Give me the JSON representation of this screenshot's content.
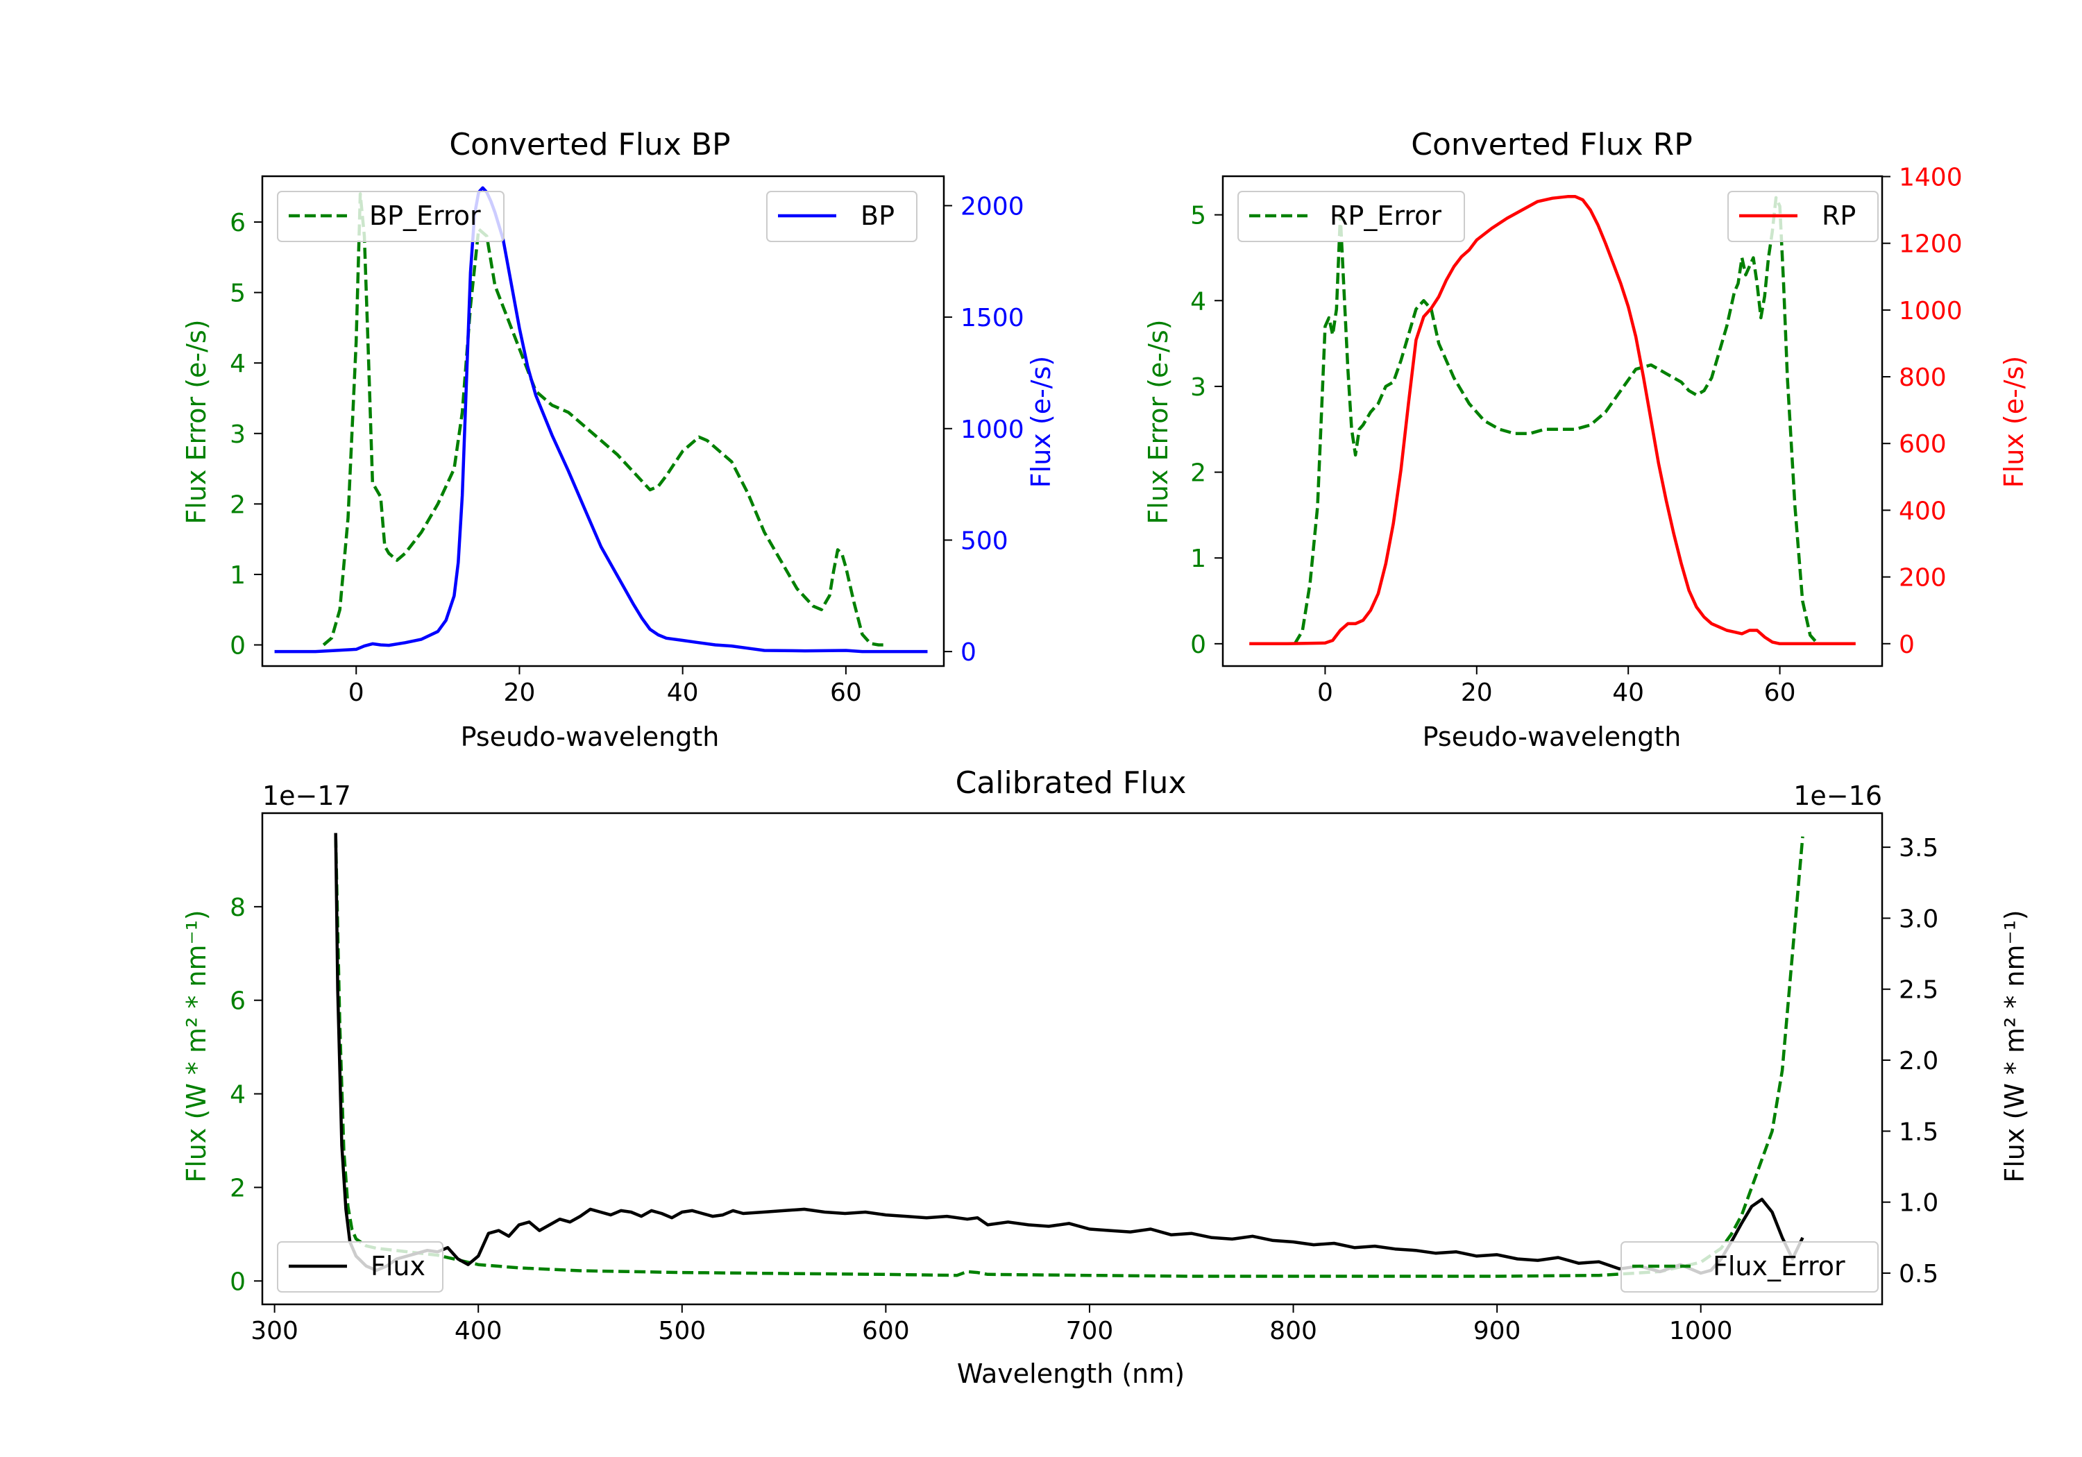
{
  "colors": {
    "green": "#008000",
    "blue": "#0000ff",
    "red": "#ff0000",
    "black": "#000000"
  },
  "chart_data": [
    {
      "id": "bp",
      "type": "line",
      "title": "Converted Flux BP",
      "xlabel": "Pseudo-wavelength",
      "ylabel_left": "Flux Error (e-/s)",
      "ylabel_right": "Flux (e-/s)",
      "xlim": [
        -11.5,
        72
      ],
      "ylim_left": [
        -0.3,
        6.65
      ],
      "ylim_right": [
        -65,
        2132
      ],
      "xticks": [
        0,
        20,
        40,
        60
      ],
      "yticks_left": [
        0,
        1,
        2,
        3,
        4,
        5,
        6
      ],
      "yticks_right": [
        0,
        500,
        1000,
        1500,
        2000
      ],
      "legend_left": "BP_Error",
      "legend_right": "BP",
      "series": [
        {
          "name": "BP_Error",
          "axis": "left",
          "style": "dashed",
          "color": "#008000",
          "x": [
            -4,
            -3,
            -2,
            -1,
            0,
            0.5,
            1,
            1.5,
            2,
            2.5,
            3,
            3.5,
            4,
            5,
            6,
            8,
            10,
            12,
            13,
            14,
            15,
            16,
            17,
            18,
            20,
            22,
            24,
            26,
            28,
            30,
            32,
            34,
            36,
            37,
            38,
            40,
            42,
            43,
            44,
            46,
            48,
            50,
            52,
            54,
            56,
            57,
            58,
            58.5,
            59,
            59.5,
            60,
            61,
            62,
            63,
            64,
            65
          ],
          "y": [
            0.0,
            0.1,
            0.5,
            1.8,
            4.3,
            6.4,
            5.8,
            4.1,
            2.3,
            2.2,
            2.1,
            1.4,
            1.3,
            1.2,
            1.3,
            1.6,
            2.0,
            2.5,
            3.3,
            4.8,
            5.9,
            5.8,
            5.1,
            4.8,
            4.2,
            3.6,
            3.4,
            3.3,
            3.1,
            2.9,
            2.7,
            2.45,
            2.2,
            2.25,
            2.4,
            2.75,
            2.95,
            2.9,
            2.8,
            2.6,
            2.15,
            1.6,
            1.2,
            0.8,
            0.55,
            0.5,
            0.7,
            1.05,
            1.35,
            1.3,
            1.1,
            0.6,
            0.15,
            0.02,
            0.0,
            0.0
          ]
        },
        {
          "name": "BP",
          "axis": "right",
          "style": "solid",
          "color": "#0000ff",
          "x": [
            -10,
            -5,
            0,
            1,
            2,
            3,
            4,
            6,
            8,
            10,
            11,
            12,
            12.5,
            13,
            13.5,
            14,
            14.5,
            15,
            15.5,
            16,
            16.5,
            17,
            18,
            19,
            20,
            21,
            22,
            24,
            26,
            28,
            30,
            32,
            34,
            35,
            36,
            37,
            38,
            40,
            42,
            44,
            46,
            48,
            50,
            55,
            60,
            62,
            64,
            66,
            70
          ],
          "y": [
            0,
            0,
            10,
            25,
            35,
            30,
            28,
            40,
            55,
            90,
            140,
            250,
            400,
            700,
            1200,
            1700,
            1960,
            2060,
            2080,
            2060,
            2020,
            1970,
            1850,
            1650,
            1450,
            1280,
            1150,
            970,
            810,
            640,
            470,
            340,
            210,
            150,
            100,
            75,
            60,
            50,
            40,
            30,
            25,
            15,
            5,
            3,
            5,
            0,
            0,
            0,
            0
          ]
        }
      ]
    },
    {
      "id": "rp",
      "type": "line",
      "title": "Converted Flux RP",
      "xlabel": "Pseudo-wavelength",
      "ylabel_left": "Flux Error (e-/s)",
      "ylabel_right": "Flux (e-/s)",
      "xlim": [
        -13.5,
        73.5
      ],
      "ylim_left": [
        -0.26,
        5.45
      ],
      "ylim_right": [
        -67,
        1401
      ],
      "xticks": [
        0,
        20,
        40,
        60
      ],
      "yticks_left": [
        0,
        1,
        2,
        3,
        4,
        5
      ],
      "yticks_right": [
        0,
        200,
        400,
        600,
        800,
        1000,
        1200,
        1400
      ],
      "legend_left": "RP_Error",
      "legend_right": "RP",
      "series": [
        {
          "name": "RP_Error",
          "axis": "left",
          "style": "dashed",
          "color": "#008000",
          "x": [
            -4,
            -3,
            -2,
            -1,
            0,
            0.5,
            1,
            1.5,
            2,
            2.5,
            3,
            3.5,
            4,
            4.5,
            5,
            6,
            7,
            8,
            9,
            10,
            11,
            12,
            13,
            14,
            15,
            17,
            19,
            21,
            23,
            25,
            27,
            29,
            31,
            33,
            35,
            37,
            39,
            41,
            43,
            45,
            47,
            48,
            49,
            50,
            51,
            52,
            53,
            54,
            54.5,
            55,
            55.5,
            56,
            56.5,
            57,
            57.5,
            58,
            58.5,
            59,
            59.5,
            60,
            60.5,
            61,
            62,
            63,
            64,
            65
          ],
          "y": [
            0.0,
            0.15,
            0.7,
            1.6,
            3.7,
            3.8,
            3.6,
            3.9,
            5.0,
            4.1,
            3.2,
            2.5,
            2.2,
            2.5,
            2.55,
            2.7,
            2.8,
            3.0,
            3.05,
            3.3,
            3.6,
            3.9,
            4.0,
            3.9,
            3.5,
            3.1,
            2.8,
            2.6,
            2.5,
            2.45,
            2.45,
            2.5,
            2.5,
            2.5,
            2.55,
            2.7,
            2.95,
            3.2,
            3.25,
            3.15,
            3.05,
            2.95,
            2.9,
            2.95,
            3.1,
            3.4,
            3.7,
            4.1,
            4.2,
            4.5,
            4.3,
            4.4,
            4.5,
            4.2,
            3.8,
            4.05,
            4.5,
            4.8,
            5.2,
            5.1,
            4.2,
            3.1,
            1.6,
            0.5,
            0.1,
            0.0
          ]
        },
        {
          "name": "RP",
          "axis": "right",
          "style": "solid",
          "color": "#ff0000",
          "x": [
            -10,
            -5,
            0,
            1,
            2,
            3,
            4,
            5,
            6,
            7,
            8,
            9,
            10,
            11,
            12,
            13,
            14,
            15,
            16,
            17,
            18,
            19,
            20,
            22,
            24,
            26,
            28,
            30,
            32,
            33,
            34,
            35,
            36,
            37,
            38,
            39,
            40,
            41,
            42,
            43,
            44,
            45,
            46,
            47,
            48,
            49,
            50,
            51,
            52,
            53,
            54,
            55,
            56,
            57,
            58,
            59,
            60,
            62,
            65,
            70
          ],
          "y": [
            0,
            0,
            2,
            10,
            40,
            60,
            60,
            70,
            100,
            150,
            240,
            360,
            520,
            720,
            910,
            980,
            1005,
            1040,
            1090,
            1130,
            1160,
            1180,
            1210,
            1245,
            1275,
            1300,
            1325,
            1335,
            1340,
            1340,
            1330,
            1300,
            1255,
            1200,
            1140,
            1080,
            1010,
            920,
            800,
            670,
            540,
            430,
            330,
            240,
            160,
            110,
            80,
            60,
            50,
            40,
            35,
            30,
            40,
            40,
            20,
            5,
            0,
            0,
            0,
            0
          ]
        }
      ]
    },
    {
      "id": "cal",
      "type": "line",
      "title": "Calibrated Flux",
      "xlabel": "Wavelength (nm)",
      "ylabel_left": "Flux (W * m² * nm⁻¹)",
      "ylabel_right": "Flux (W * m² * nm⁻¹)",
      "offset_left": "1e−17",
      "offset_right": "1e−16",
      "xlim": [
        294,
        1089
      ],
      "ylim_left": [
        -0.5,
        10.0
      ],
      "ylim_right": [
        0.28,
        3.74
      ],
      "xticks": [
        300,
        400,
        500,
        600,
        700,
        800,
        900,
        1000
      ],
      "yticks_left": [
        0,
        2,
        4,
        6,
        8
      ],
      "yticks_left_labels": [
        "0",
        "2",
        "4",
        "6",
        "8"
      ],
      "yticks_right": [
        0.5,
        1.0,
        1.5,
        2.0,
        2.5,
        3.0,
        3.5
      ],
      "yticks_right_labels": [
        "0.5",
        "1.0",
        "1.5",
        "2.0",
        "2.5",
        "3.0",
        "3.5"
      ],
      "legend_left": "Flux",
      "legend_right": "Flux_Error",
      "series": [
        {
          "name": "Flux_Error",
          "axis": "left",
          "style": "dashed",
          "color": "#008000",
          "x": [
            330,
            332,
            334,
            336,
            338,
            340,
            345,
            350,
            360,
            370,
            380,
            390,
            400,
            420,
            450,
            500,
            550,
            600,
            635,
            640,
            645,
            650,
            700,
            750,
            800,
            850,
            900,
            950,
            980,
            1000,
            1010,
            1015,
            1020,
            1025,
            1030,
            1035,
            1040,
            1045,
            1050
          ],
          "y": [
            9.5,
            5.5,
            2.8,
            1.6,
            1.1,
            0.9,
            0.75,
            0.7,
            0.65,
            0.6,
            0.55,
            0.45,
            0.35,
            0.28,
            0.22,
            0.18,
            0.16,
            0.14,
            0.12,
            0.2,
            0.18,
            0.14,
            0.12,
            0.1,
            0.1,
            0.1,
            0.1,
            0.12,
            0.2,
            0.4,
            0.7,
            1.0,
            1.4,
            2.0,
            2.6,
            3.2,
            4.5,
            7.0,
            9.5
          ]
        },
        {
          "name": "Flux",
          "axis": "right",
          "style": "solid",
          "color": "#000000",
          "x": [
            330,
            331,
            333,
            335,
            337,
            340,
            345,
            350,
            355,
            360,
            365,
            370,
            375,
            380,
            385,
            390,
            395,
            400,
            405,
            410,
            415,
            420,
            425,
            430,
            435,
            440,
            445,
            450,
            455,
            460,
            465,
            470,
            475,
            480,
            485,
            490,
            495,
            500,
            505,
            510,
            515,
            520,
            525,
            530,
            540,
            550,
            560,
            570,
            580,
            590,
            600,
            610,
            620,
            630,
            640,
            645,
            650,
            660,
            670,
            680,
            690,
            700,
            710,
            720,
            730,
            740,
            750,
            760,
            770,
            780,
            790,
            800,
            810,
            820,
            830,
            840,
            850,
            860,
            870,
            880,
            890,
            900,
            910,
            920,
            930,
            940,
            950,
            960,
            970,
            980,
            990,
            1000,
            1005,
            1010,
            1015,
            1020,
            1025,
            1030,
            1035,
            1040,
            1045,
            1050
          ],
          "y": [
            3.6,
            2.5,
            1.4,
            0.95,
            0.72,
            0.62,
            0.55,
            0.52,
            0.55,
            0.6,
            0.62,
            0.64,
            0.66,
            0.65,
            0.68,
            0.6,
            0.56,
            0.62,
            0.78,
            0.8,
            0.76,
            0.84,
            0.86,
            0.8,
            0.84,
            0.88,
            0.86,
            0.9,
            0.95,
            0.93,
            0.91,
            0.94,
            0.93,
            0.9,
            0.94,
            0.92,
            0.89,
            0.93,
            0.94,
            0.92,
            0.9,
            0.91,
            0.94,
            0.92,
            0.93,
            0.94,
            0.95,
            0.93,
            0.92,
            0.93,
            0.91,
            0.9,
            0.89,
            0.9,
            0.88,
            0.89,
            0.84,
            0.86,
            0.84,
            0.83,
            0.85,
            0.81,
            0.8,
            0.79,
            0.81,
            0.77,
            0.78,
            0.75,
            0.74,
            0.76,
            0.73,
            0.72,
            0.7,
            0.71,
            0.68,
            0.69,
            0.67,
            0.66,
            0.64,
            0.65,
            0.62,
            0.63,
            0.6,
            0.59,
            0.61,
            0.57,
            0.58,
            0.53,
            0.55,
            0.51,
            0.56,
            0.5,
            0.52,
            0.6,
            0.72,
            0.85,
            0.97,
            1.02,
            0.93,
            0.75,
            0.6,
            0.75
          ]
        }
      ]
    }
  ]
}
